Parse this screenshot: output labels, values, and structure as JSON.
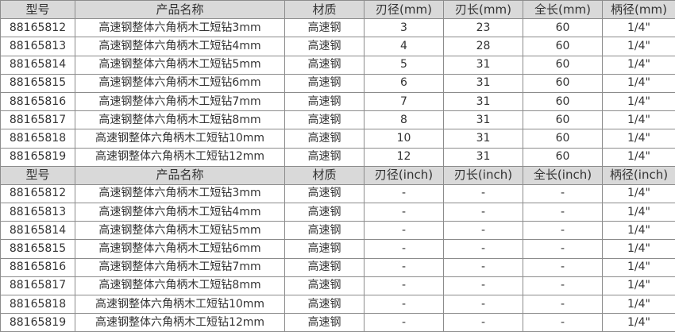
{
  "tables": [
    {
      "headers": [
        "型号",
        "产品名称",
        "材质",
        "刃径(mm)",
        "刃长(mm)",
        "全长(mm)",
        "柄径(mm)"
      ],
      "rows": [
        [
          "88165812",
          "高速钢整体六角柄木工短钻3mm",
          "高速钢",
          "3",
          "23",
          "60",
          "1/4\""
        ],
        [
          "88165813",
          "高速钢整体六角柄木工短钻4mm",
          "高速钢",
          "4",
          "28",
          "60",
          "1/4\""
        ],
        [
          "88165814",
          "高速钢整体六角柄木工短钻5mm",
          "高速钢",
          "5",
          "31",
          "60",
          "1/4\""
        ],
        [
          "88165815",
          "高速钢整体六角柄木工短钻6mm",
          "高速钢",
          "6",
          "31",
          "60",
          "1/4\""
        ],
        [
          "88165816",
          "高速钢整体六角柄木工短钻7mm",
          "高速钢",
          "7",
          "31",
          "60",
          "1/4\""
        ],
        [
          "88165817",
          "高速钢整体六角柄木工短钻8mm",
          "高速钢",
          "8",
          "31",
          "60",
          "1/4\""
        ],
        [
          "88165818",
          "高速钢整体六角柄木工短钻10mm",
          "高速钢",
          "10",
          "31",
          "60",
          "1/4\""
        ],
        [
          "88165819",
          "高速钢整体六角柄木工短钻12mm",
          "高速钢",
          "12",
          "31",
          "60",
          "1/4\""
        ]
      ]
    },
    {
      "headers": [
        "型号",
        "产品名称",
        "材质",
        "刃径(inch)",
        "刃长(inch)",
        "全长(inch)",
        "柄径(inch)"
      ],
      "rows": [
        [
          "88165812",
          "高速钢整体六角柄木工短钻3mm",
          "高速钢",
          "-",
          "-",
          "-",
          "1/4\""
        ],
        [
          "88165813",
          "高速钢整体六角柄木工短钻4mm",
          "高速钢",
          "-",
          "-",
          "-",
          "1/4\""
        ],
        [
          "88165814",
          "高速钢整体六角柄木工短钻5mm",
          "高速钢",
          "-",
          "-",
          "-",
          "1/4\""
        ],
        [
          "88165815",
          "高速钢整体六角柄木工短钻6mm",
          "高速钢",
          "-",
          "-",
          "-",
          "1/4\""
        ],
        [
          "88165816",
          "高速钢整体六角柄木工短钻7mm",
          "高速钢",
          "-",
          "-",
          "-",
          "1/4\""
        ],
        [
          "88165817",
          "高速钢整体六角柄木工短钻8mm",
          "高速钢",
          "-",
          "-",
          "-",
          "1/4\""
        ],
        [
          "88165818",
          "高速钢整体六角柄木工短钻10mm",
          "高速钢",
          "-",
          "-",
          "-",
          "1/4\""
        ],
        [
          "88165819",
          "高速钢整体六角柄木工短钻12mm",
          "高速钢",
          "-",
          "-",
          "-",
          "1/4\""
        ]
      ]
    }
  ]
}
